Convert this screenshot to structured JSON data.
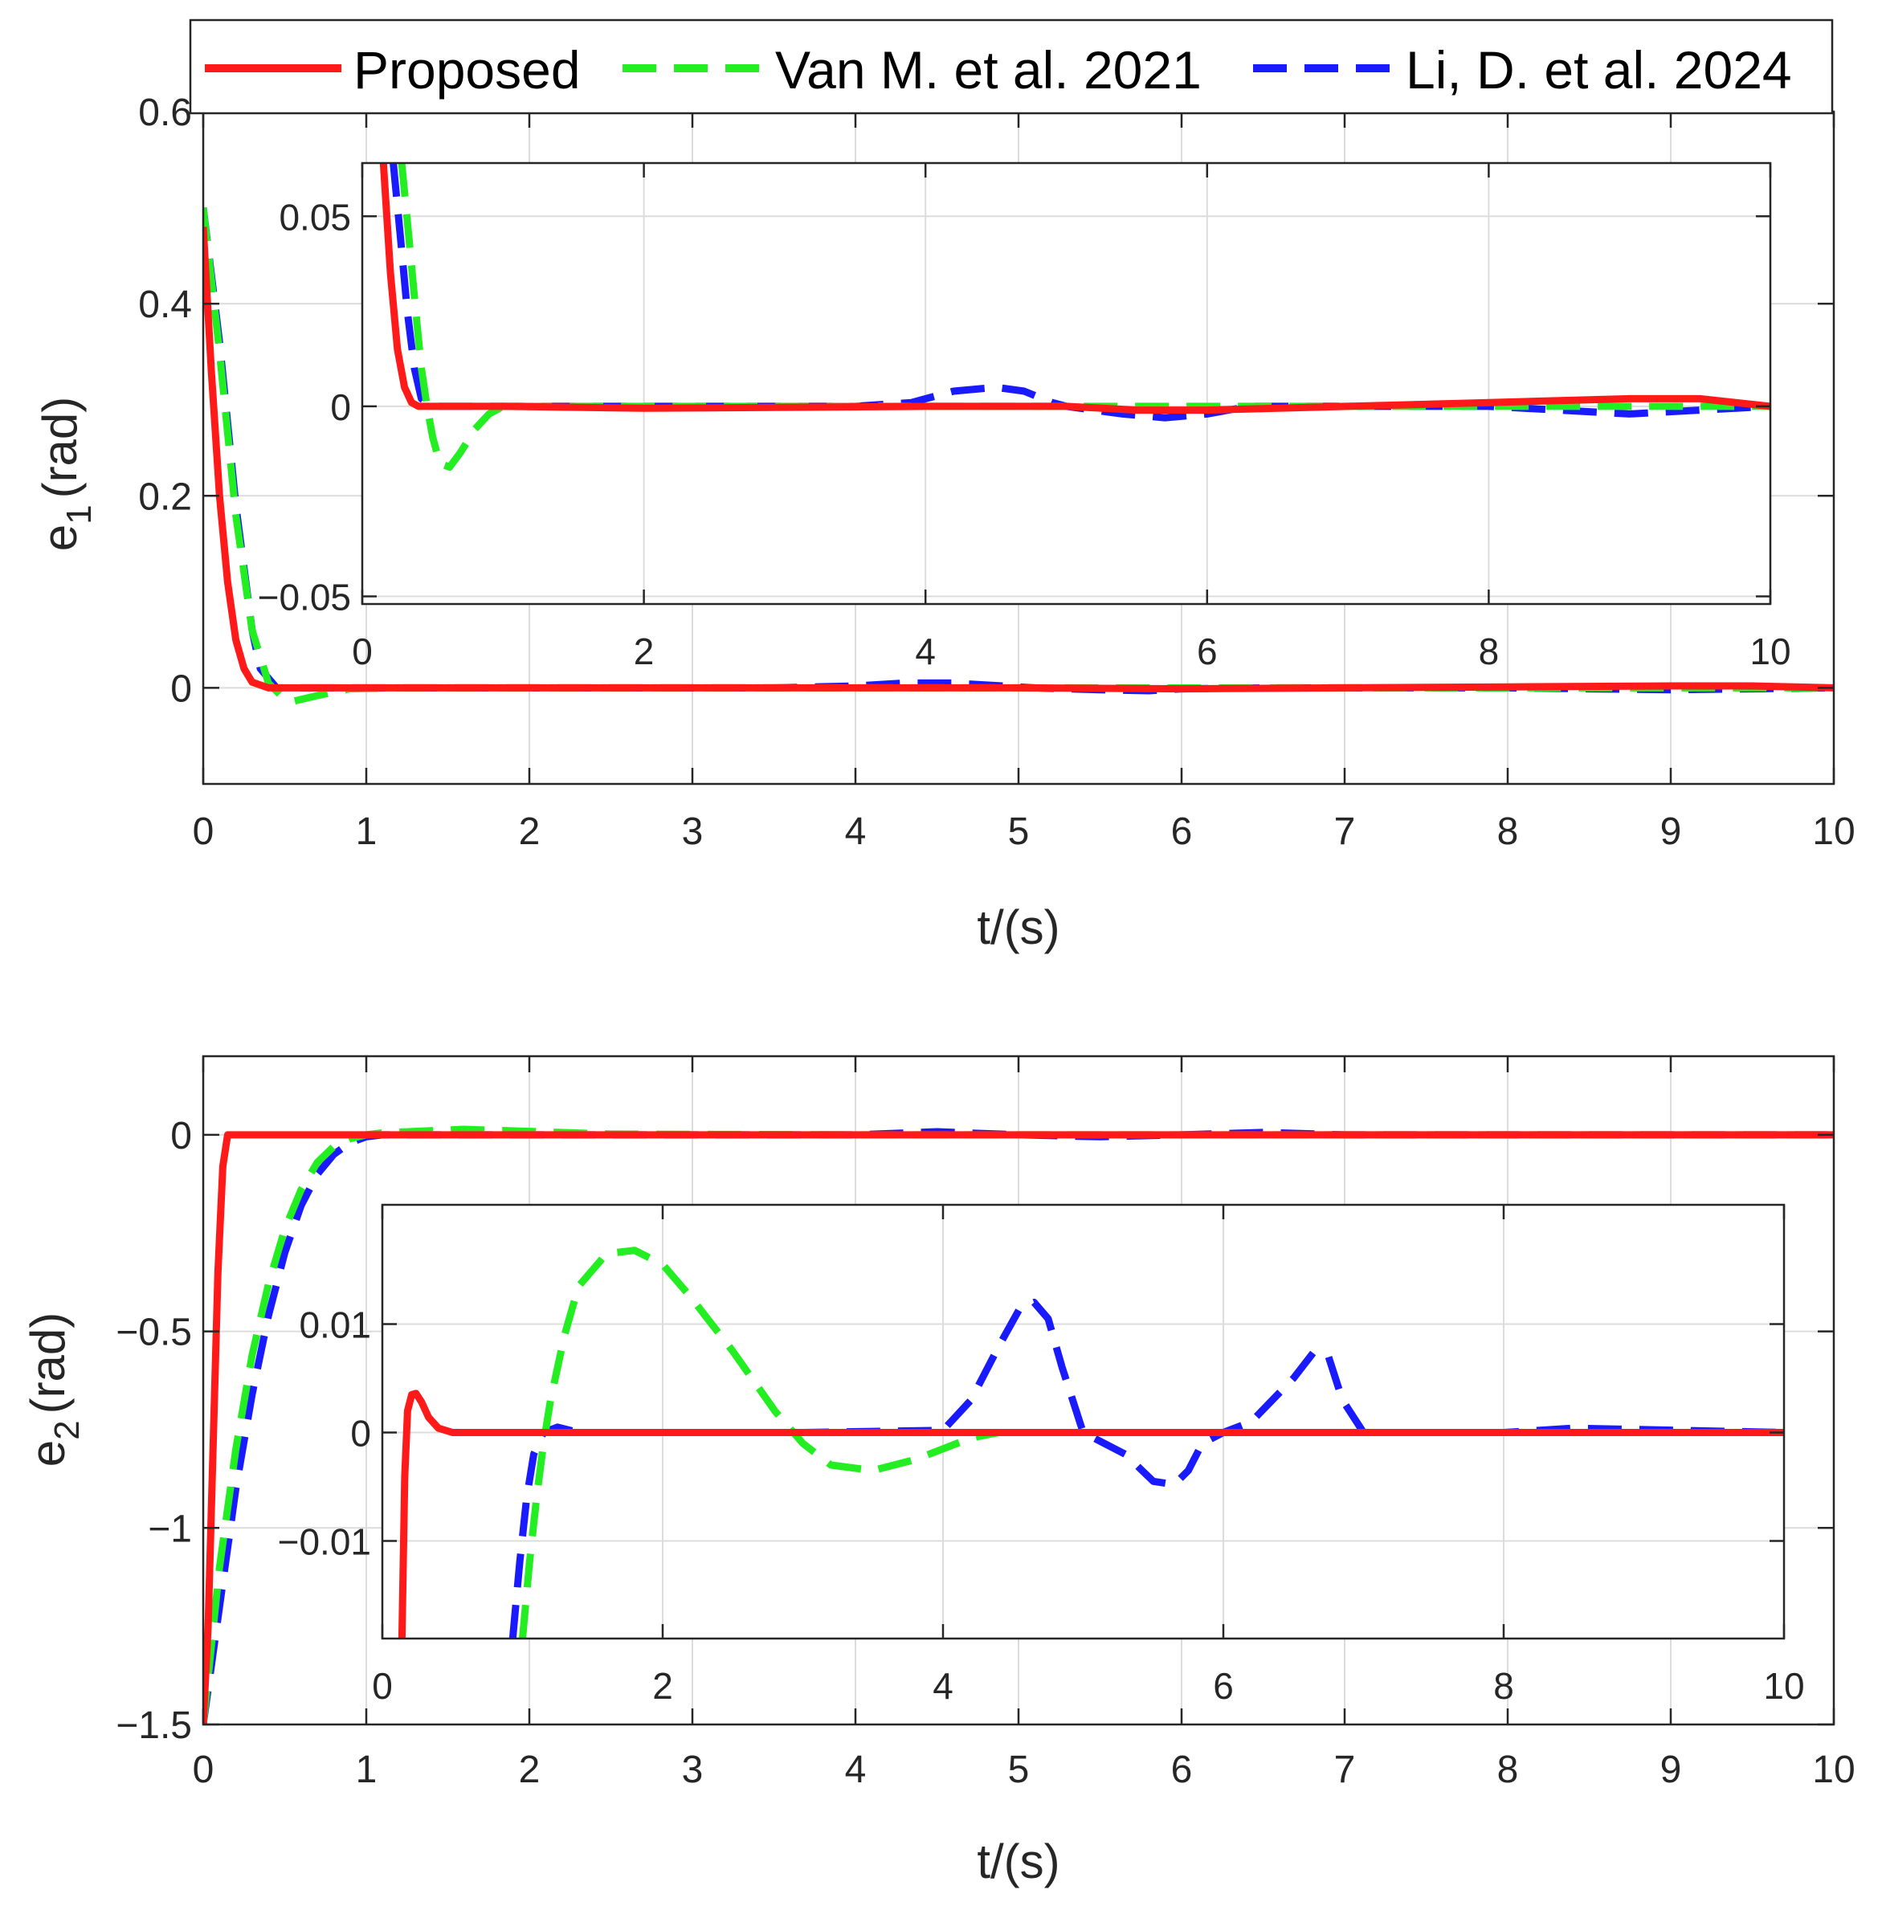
{
  "colors": {
    "proposed": "#ff1a1a",
    "van": "#22ee22",
    "li": "#1a1aff",
    "grid": "#dcdcdc",
    "axis": "#262626"
  },
  "legend": {
    "items": [
      {
        "key": "proposed",
        "label": "Proposed",
        "style": "solid"
      },
      {
        "key": "van",
        "label": "Van M. et al. 2021",
        "style": "dashed"
      },
      {
        "key": "li",
        "label": "Li, D. et al. 2024",
        "style": "dashed"
      }
    ]
  },
  "chart_data": [
    {
      "id": "e1_main",
      "type": "line",
      "title": "",
      "xlabel": "t/(s)",
      "ylabel_base": "e",
      "ylabel_sub": "1",
      "ylabel_unit": "(rad)",
      "xlim": [
        0,
        10
      ],
      "ylim": [
        -0.1,
        0.6
      ],
      "xticks": [
        0,
        1,
        2,
        3,
        4,
        5,
        6,
        7,
        8,
        9,
        10
      ],
      "xticklabels": [
        "0",
        "1",
        "2",
        "3",
        "4",
        "5",
        "6",
        "7",
        "8",
        "9",
        "10"
      ],
      "yticks": [
        0,
        0.2,
        0.4,
        0.6
      ],
      "yticklabels": [
        "0",
        "0.2",
        "0.4",
        "0.6"
      ],
      "grid": true,
      "series": [
        {
          "key": "proposed",
          "name": "Proposed",
          "x": [
            0,
            0.05,
            0.1,
            0.15,
            0.2,
            0.25,
            0.3,
            0.4,
            1,
            2,
            3,
            4,
            5,
            6,
            7,
            8,
            9,
            9.5,
            10
          ],
          "y": [
            0.48,
            0.33,
            0.2,
            0.11,
            0.05,
            0.02,
            0.006,
            0,
            0,
            0,
            0,
            0,
            0,
            -0.001,
            0,
            0.001,
            0.002,
            0.002,
            0
          ]
        },
        {
          "key": "van",
          "name": "Van M. et al. 2021",
          "x": [
            0,
            0.1,
            0.2,
            0.3,
            0.4,
            0.5,
            0.55,
            0.7,
            0.9,
            1.2,
            2,
            4,
            5,
            6,
            7,
            8,
            9,
            10
          ],
          "y": [
            0.5,
            0.35,
            0.18,
            0.06,
            0.005,
            -0.012,
            -0.014,
            -0.008,
            -0.001,
            0,
            0,
            0,
            0,
            0,
            0,
            0,
            0,
            0
          ]
        },
        {
          "key": "li",
          "name": "Li, D. et al. 2024",
          "x": [
            0,
            0.1,
            0.2,
            0.3,
            0.35,
            0.45,
            1,
            2,
            3.5,
            4,
            4.3,
            4.6,
            4.9,
            5.1,
            5.5,
            5.8,
            6,
            6.5,
            8,
            8.5,
            9,
            9.5,
            10
          ],
          "y": [
            0.5,
            0.36,
            0.19,
            0.06,
            0.02,
            0,
            0,
            0,
            0,
            0.002,
            0.005,
            0.005,
            0.002,
            0,
            -0.002,
            -0.003,
            -0.001,
            0,
            0,
            -0.001,
            -0.002,
            -0.001,
            0
          ]
        }
      ]
    },
    {
      "id": "e1_inset",
      "type": "line",
      "title": "",
      "xlabel": "",
      "ylabel": "",
      "xlim": [
        0,
        10
      ],
      "ylim": [
        -0.052,
        0.064
      ],
      "xticks": [
        0,
        2,
        4,
        6,
        8,
        10
      ],
      "xticklabels": [
        "0",
        "2",
        "4",
        "6",
        "8",
        "10"
      ],
      "yticks": [
        -0.05,
        0,
        0.05
      ],
      "yticklabels": [
        "−0.05",
        "0",
        "0.05"
      ],
      "grid": true,
      "series": [
        {
          "key": "proposed",
          "name": "Proposed",
          "x": [
            0.15,
            0.2,
            0.25,
            0.3,
            0.35,
            0.4,
            1,
            2,
            4,
            5,
            5.5,
            6,
            7,
            8,
            9,
            9.5,
            10
          ],
          "y": [
            0.064,
            0.035,
            0.015,
            0.005,
            0.001,
            0,
            0,
            -0.0005,
            0,
            0,
            -0.001,
            -0.001,
            0,
            0.001,
            0.002,
            0.002,
            0
          ]
        },
        {
          "key": "van",
          "name": "Van M. et al. 2021",
          "x": [
            0.28,
            0.33,
            0.38,
            0.42,
            0.46,
            0.5,
            0.55,
            0.62,
            0.7,
            0.8,
            0.9,
            1.0,
            1.5,
            2,
            4,
            5,
            6,
            7,
            8,
            9,
            10
          ],
          "y": [
            0.064,
            0.045,
            0.025,
            0.01,
            0,
            -0.008,
            -0.015,
            -0.016,
            -0.012,
            -0.006,
            -0.002,
            0,
            0,
            0,
            0,
            0,
            0,
            0,
            0,
            0,
            0
          ]
        },
        {
          "key": "li",
          "name": "Li, D. et al. 2024",
          "x": [
            0.22,
            0.27,
            0.32,
            0.37,
            0.42,
            0.5,
            1,
            2,
            3.5,
            3.9,
            4.2,
            4.5,
            4.7,
            4.9,
            5,
            5.4,
            5.7,
            6,
            6.3,
            7,
            8,
            8.5,
            9,
            9.5,
            10
          ],
          "y": [
            0.064,
            0.045,
            0.025,
            0.01,
            0.002,
            0,
            0,
            0,
            0,
            0.001,
            0.004,
            0.005,
            0.004,
            0.001,
            0,
            -0.002,
            -0.003,
            -0.002,
            0,
            0,
            0,
            -0.001,
            -0.002,
            -0.001,
            0
          ]
        }
      ]
    },
    {
      "id": "e2_main",
      "type": "line",
      "title": "",
      "xlabel": "t/(s)",
      "ylabel_base": "e",
      "ylabel_sub": "2",
      "ylabel_unit": "(rad)",
      "xlim": [
        0,
        10
      ],
      "ylim": [
        -1.5,
        0.2
      ],
      "xticks": [
        0,
        1,
        2,
        3,
        4,
        5,
        6,
        7,
        8,
        9,
        10
      ],
      "xticklabels": [
        "0",
        "1",
        "2",
        "3",
        "4",
        "5",
        "6",
        "7",
        "8",
        "9",
        "10"
      ],
      "yticks": [
        -1.5,
        -1,
        -0.5,
        0
      ],
      "yticklabels": [
        "−1.5",
        "−1",
        "−0.5",
        "0"
      ],
      "grid": true,
      "series": [
        {
          "key": "proposed",
          "name": "Proposed",
          "x": [
            0,
            0.03,
            0.06,
            0.09,
            0.12,
            0.15,
            0.2,
            1,
            2,
            4,
            6,
            8,
            10
          ],
          "y": [
            -1.5,
            -1.25,
            -0.8,
            -0.35,
            -0.08,
            0,
            0,
            0,
            0,
            0,
            0,
            0,
            0
          ]
        },
        {
          "key": "van",
          "name": "Van M. et al. 2021",
          "x": [
            0,
            0.1,
            0.2,
            0.3,
            0.4,
            0.5,
            0.6,
            0.7,
            0.8,
            0.9,
            1.0,
            1.1,
            1.6,
            2.5,
            4,
            6,
            8,
            10
          ],
          "y": [
            -1.5,
            -1.1,
            -0.8,
            -0.56,
            -0.38,
            -0.24,
            -0.14,
            -0.07,
            -0.03,
            -0.01,
            0,
            0.005,
            0.014,
            0.002,
            0,
            0,
            0,
            0
          ]
        },
        {
          "key": "li",
          "name": "Li, D. et al. 2024",
          "x": [
            0,
            0.1,
            0.2,
            0.3,
            0.4,
            0.5,
            0.6,
            0.7,
            0.8,
            0.9,
            1.0,
            1.1,
            1.3,
            2,
            4,
            4.5,
            5,
            5.5,
            6,
            6.5,
            7,
            8,
            10
          ],
          "y": [
            -1.5,
            -1.2,
            -0.9,
            -0.66,
            -0.46,
            -0.3,
            -0.18,
            -0.1,
            -0.05,
            -0.02,
            -0.005,
            0,
            0,
            0,
            0,
            0.008,
            0,
            -0.005,
            0,
            0.006,
            0,
            0,
            0
          ]
        }
      ]
    },
    {
      "id": "e2_inset",
      "type": "line",
      "title": "",
      "xlabel": "",
      "ylabel": "",
      "xlim": [
        0,
        10
      ],
      "ylim": [
        -0.019,
        0.021
      ],
      "xticks": [
        0,
        2,
        4,
        6,
        8,
        10
      ],
      "xticklabels": [
        "0",
        "2",
        "4",
        "6",
        "8",
        "10"
      ],
      "yticks": [
        -0.01,
        0,
        0.01
      ],
      "yticklabels": [
        "−0.01",
        "0",
        "0.01"
      ],
      "grid": true,
      "series": [
        {
          "key": "proposed",
          "name": "Proposed",
          "x": [
            0.14,
            0.16,
            0.18,
            0.21,
            0.24,
            0.28,
            0.33,
            0.4,
            0.5,
            1,
            2,
            4,
            6,
            8,
            10
          ],
          "y": [
            -0.019,
            -0.004,
            0.002,
            0.0035,
            0.0036,
            0.0028,
            0.0014,
            0.0004,
            0,
            0,
            0,
            0,
            0,
            0,
            0
          ]
        },
        {
          "key": "van",
          "name": "Van M. et al. 2021",
          "x": [
            1.0,
            1.05,
            1.1,
            1.15,
            1.2,
            1.3,
            1.4,
            1.6,
            1.8,
            2.0,
            2.2,
            2.5,
            2.8,
            3.0,
            3.2,
            3.5,
            3.8,
            4.0,
            4.2,
            4.4,
            6,
            8,
            10
          ],
          "y": [
            -0.019,
            -0.012,
            -0.006,
            -0.001,
            0.003,
            0.009,
            0.0135,
            0.0165,
            0.0168,
            0.0155,
            0.0125,
            0.0075,
            0.002,
            -0.001,
            -0.003,
            -0.0035,
            -0.0025,
            -0.0015,
            -0.0005,
            0,
            0,
            0,
            0
          ]
        },
        {
          "key": "li",
          "name": "Li, D. et al. 2024",
          "x": [
            0.93,
            0.98,
            1.03,
            1.08,
            1.15,
            1.25,
            1.4,
            2,
            3,
            4,
            4.2,
            4.4,
            4.55,
            4.65,
            4.75,
            4.85,
            5,
            5.3,
            5.5,
            5.65,
            5.75,
            5.85,
            6,
            6.2,
            6.5,
            6.65,
            6.75,
            6.85,
            7,
            8,
            8.5,
            10
          ],
          "y": [
            -0.019,
            -0.012,
            -0.006,
            -0.002,
            0,
            0.0005,
            0,
            0,
            0,
            0.0002,
            0.003,
            0.008,
            0.0115,
            0.012,
            0.0105,
            0.006,
            0,
            -0.002,
            -0.0045,
            -0.0048,
            -0.0035,
            -0.001,
            0,
            0.001,
            0.005,
            0.0075,
            0.007,
            0.003,
            0,
            0,
            0.0004,
            0
          ]
        }
      ]
    }
  ]
}
